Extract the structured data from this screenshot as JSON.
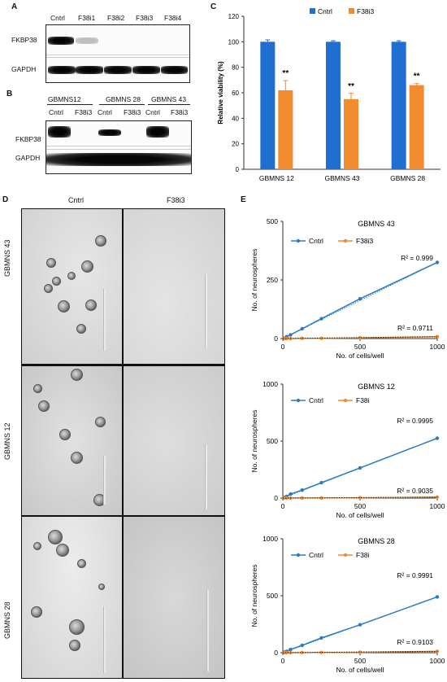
{
  "panel_labels": {
    "A": "A",
    "B": "B",
    "C": "C",
    "D": "D",
    "E": "E"
  },
  "blotA": {
    "lanes": [
      "Cntrl",
      "F38i1",
      "F38i2",
      "F38i3",
      "F38i4"
    ],
    "rows": [
      "FKBP38",
      "GAPDH"
    ]
  },
  "blotB": {
    "groups": [
      "GBMNS12",
      "GBMNS 28",
      "GBMNS 43"
    ],
    "lanes": [
      "Cntrl",
      "F38i3",
      "Cntrl",
      "F38i3",
      "Cntrl",
      "F38i3"
    ],
    "rows": [
      "FKBP38",
      "GAPDH"
    ]
  },
  "micro": {
    "col_labels": [
      "Cntrl",
      "F38i3"
    ],
    "row_labels": [
      "GBMNS 43",
      "GBMNS 12",
      "GBMNS 28"
    ]
  },
  "chart_data": [
    {
      "type": "bar",
      "panel": "C",
      "categories": [
        "GBMNS 12",
        "GBMNS 43",
        "GBMNS 28"
      ],
      "series": [
        {
          "name": "Cntrl",
          "values": [
            100,
            100,
            100
          ],
          "errors": [
            1.5,
            0.8,
            0.8
          ],
          "color": "#1f6fd0"
        },
        {
          "name": "F38i3",
          "values": [
            62,
            55,
            66
          ],
          "errors": [
            7.5,
            4.5,
            1.2
          ],
          "color": "#f28a2e"
        }
      ],
      "annotations": [
        "**",
        "**",
        "**"
      ],
      "ylabel": "Relative viability (%)",
      "ylim": [
        0,
        120
      ],
      "yticks": [
        0,
        20,
        40,
        60,
        80,
        100,
        120
      ]
    },
    {
      "type": "line",
      "panel": "E",
      "title": "GBMNS 43",
      "xlabel": "No. of cells/well",
      "ylabel": "No. of neurospheres",
      "xlim": [
        0,
        1000
      ],
      "ylim": [
        0,
        500
      ],
      "xticks": [
        0,
        500,
        1000
      ],
      "yticks": [
        0,
        250,
        500
      ],
      "series": [
        {
          "name": "Cntrl",
          "x": [
            10,
            25,
            50,
            125,
            250,
            500,
            1000
          ],
          "y": [
            2,
            8,
            16,
            42,
            85,
            170,
            325
          ],
          "color": "#2b7bc4",
          "r2": "R² = 0.999"
        },
        {
          "name": "F38i3",
          "x": [
            10,
            25,
            50,
            125,
            250,
            500,
            1000
          ],
          "y": [
            0,
            0,
            0,
            1,
            1,
            3,
            8
          ],
          "color": "#f28a2e",
          "r2": "R² = 0.9711"
        }
      ]
    },
    {
      "type": "line",
      "panel": "E",
      "title": "GBMNS 12",
      "xlabel": "No. of cells/well",
      "ylabel": "No. of neurospheres",
      "xlim": [
        0,
        1000
      ],
      "ylim": [
        0,
        1000
      ],
      "xticks": [
        0,
        500,
        1000
      ],
      "yticks": [
        0,
        500,
        1000
      ],
      "series": [
        {
          "name": "Cntrl",
          "x": [
            10,
            25,
            50,
            125,
            250,
            500,
            1000
          ],
          "y": [
            5,
            15,
            35,
            70,
            135,
            265,
            525
          ],
          "color": "#2b7bc4",
          "r2": "R² = 0.9995"
        },
        {
          "name": "F38i",
          "x": [
            10,
            25,
            50,
            125,
            250,
            500,
            1000
          ],
          "y": [
            0,
            0,
            0,
            1,
            1,
            3,
            8
          ],
          "color": "#f28a2e",
          "r2": "R² = 0.9035"
        }
      ]
    },
    {
      "type": "line",
      "panel": "E",
      "title": "GBMNS 28",
      "xlabel": "No. of cells/well",
      "ylabel": "No. of neurospheres",
      "xlim": [
        0,
        1000
      ],
      "ylim": [
        0,
        1000
      ],
      "xticks": [
        0,
        500,
        1000
      ],
      "yticks": [
        0,
        500,
        1000
      ],
      "series": [
        {
          "name": "Cntrl",
          "x": [
            10,
            25,
            50,
            125,
            250,
            500,
            1000
          ],
          "y": [
            5,
            12,
            28,
            65,
            130,
            245,
            490
          ],
          "color": "#2b7bc4",
          "r2": "R² = 0.9991"
        },
        {
          "name": "F38i",
          "x": [
            10,
            25,
            50,
            125,
            250,
            500,
            1000
          ],
          "y": [
            0,
            0,
            0,
            1,
            2,
            4,
            12
          ],
          "color": "#f28a2e",
          "r2": "R² = 0.9103"
        }
      ]
    }
  ]
}
